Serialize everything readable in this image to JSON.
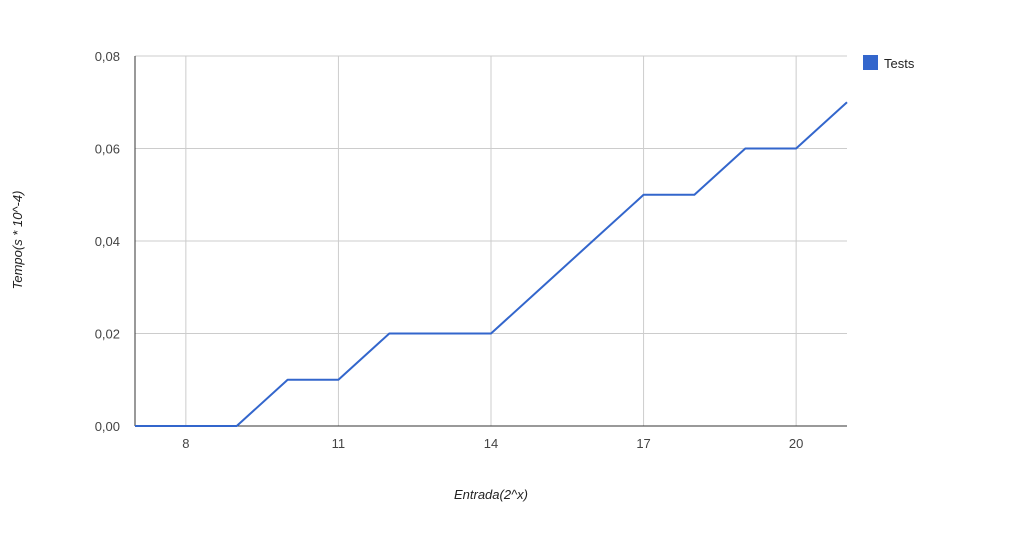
{
  "chart_data": {
    "type": "line",
    "title": "",
    "xlabel": "Entrada(2^x)",
    "ylabel": "Tempo(s * 10^-4)",
    "xlim": [
      7,
      21
    ],
    "ylim": [
      0,
      0.08
    ],
    "x_ticks": [
      8,
      11,
      14,
      17,
      20
    ],
    "y_ticks": [
      0,
      0.02,
      0.04,
      0.06,
      0.08
    ],
    "y_tick_labels": [
      "0,00",
      "0,02",
      "0,04",
      "0,06",
      "0,08"
    ],
    "x_tick_labels": [
      "8",
      "11",
      "14",
      "17",
      "20"
    ],
    "grid": true,
    "legend_position": "right",
    "series": [
      {
        "name": "Tests",
        "color": "#3366cc",
        "x": [
          7,
          8,
          9,
          10,
          11,
          12,
          13,
          14,
          15,
          16,
          17,
          18,
          19,
          20,
          21
        ],
        "y": [
          0,
          0,
          0,
          0.01,
          0.01,
          0.02,
          0.02,
          0.02,
          0.03,
          0.04,
          0.05,
          0.05,
          0.06,
          0.06,
          0.07
        ]
      }
    ]
  }
}
